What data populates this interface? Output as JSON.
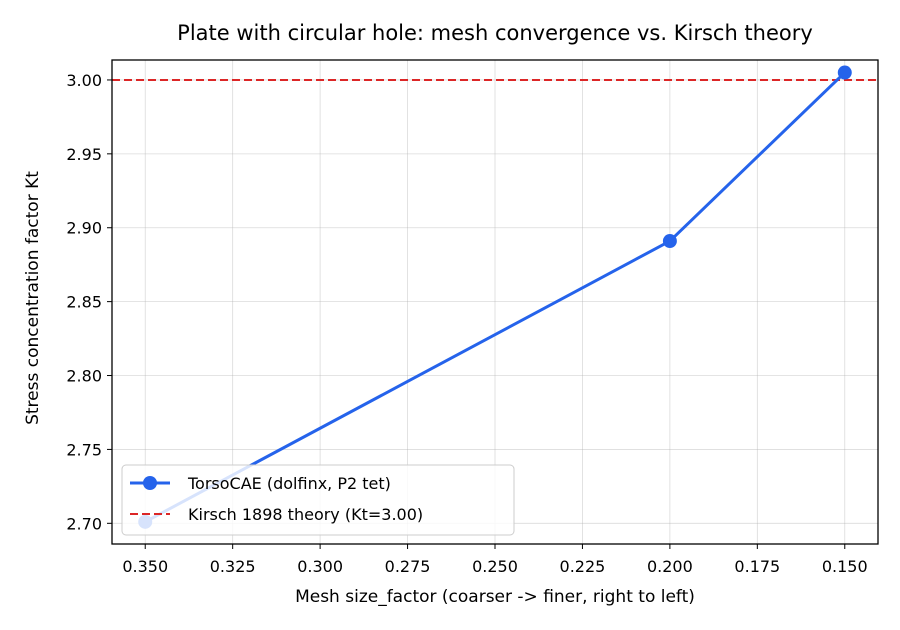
{
  "chart_data": {
    "type": "line",
    "title": "Plate with circular hole: mesh convergence vs. Kirsch theory",
    "xlabel": "Mesh size_factor (coarser -> finer, right to left)",
    "ylabel": "Stress concentration factor Kt",
    "x_inverted": true,
    "xlim": [
      0.3595,
      0.1405
    ],
    "ylim": [
      2.686,
      3.0135
    ],
    "x_ticks": [
      0.35,
      0.325,
      0.3,
      0.275,
      0.25,
      0.225,
      0.2,
      0.175,
      0.15
    ],
    "x_tick_labels": [
      "0.350",
      "0.325",
      "0.300",
      "0.275",
      "0.250",
      "0.225",
      "0.200",
      "0.175",
      "0.150"
    ],
    "y_ticks": [
      2.7,
      2.75,
      2.8,
      2.85,
      2.9,
      2.95,
      3.0
    ],
    "y_tick_labels": [
      "2.70",
      "2.75",
      "2.80",
      "2.85",
      "2.90",
      "2.95",
      "3.00"
    ],
    "grid": true,
    "legend_position": "lower-left",
    "series": [
      {
        "name": "TorsoCAE (dolfinx, P2 tet)",
        "color": "#2563eb",
        "marker": "circle",
        "x": [
          0.35,
          0.2,
          0.15
        ],
        "y": [
          2.701,
          2.891,
          3.005
        ]
      }
    ],
    "reference_lines": [
      {
        "name": "Kirsch 1898 theory (Kt=3.00)",
        "y": 3.0,
        "color": "#dc2626",
        "style": "dashed"
      }
    ]
  }
}
